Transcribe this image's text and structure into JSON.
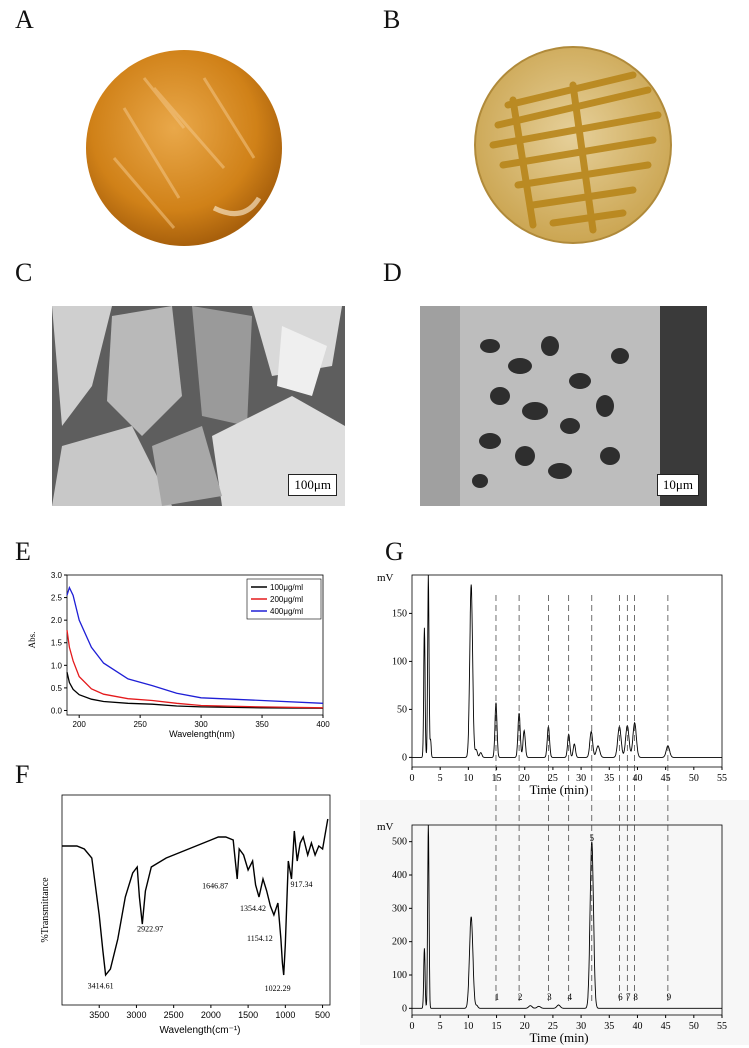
{
  "panels": {
    "a": "A",
    "b": "B",
    "c": "C",
    "d": "D",
    "e": "E",
    "f": "F",
    "g": "G"
  },
  "scalebars": {
    "c": "100μm",
    "d": "10μm"
  },
  "colors": {
    "agar_orange": "#d98a1e",
    "agar_yellow": "#d8b55a",
    "sem_gray": "#7a7a7a"
  },
  "chart_data": [
    {
      "id": "E",
      "type": "line",
      "xlabel": "Wavelength(nm)",
      "ylabel": "Abs.",
      "xlim": [
        190,
        400
      ],
      "ylim": [
        -0.1,
        3.0
      ],
      "xticks": [
        200,
        250,
        300,
        350,
        400
      ],
      "yticks": [
        0.0,
        0.5,
        1.0,
        1.5,
        2.0,
        2.5,
        3.0
      ],
      "legend_position": "top-right",
      "series": [
        {
          "name": "100μg/ml",
          "color": "#000000",
          "x": [
            190,
            192,
            195,
            200,
            210,
            220,
            240,
            260,
            280,
            300,
            350,
            400
          ],
          "y": [
            0.85,
            0.62,
            0.47,
            0.35,
            0.25,
            0.2,
            0.16,
            0.14,
            0.1,
            0.08,
            0.06,
            0.05
          ]
        },
        {
          "name": "200μg/ml",
          "color": "#e41a1c",
          "x": [
            190,
            192,
            195,
            200,
            210,
            220,
            240,
            260,
            280,
            300,
            350,
            400
          ],
          "y": [
            1.78,
            1.4,
            1.1,
            0.75,
            0.48,
            0.36,
            0.26,
            0.22,
            0.16,
            0.11,
            0.08,
            0.06
          ]
        },
        {
          "name": "400μg/ml",
          "color": "#1f1fd6",
          "x": [
            190,
            192,
            195,
            200,
            210,
            220,
            240,
            260,
            280,
            300,
            350,
            400
          ],
          "y": [
            2.55,
            2.72,
            2.55,
            2.0,
            1.4,
            1.05,
            0.7,
            0.55,
            0.38,
            0.28,
            0.22,
            0.16
          ]
        }
      ]
    },
    {
      "id": "F",
      "type": "line",
      "xlabel": "Wavelength(cm⁻¹)",
      "ylabel": "%Transmittance",
      "xlim": [
        4000,
        400
      ],
      "xticks": [
        3500,
        3000,
        2500,
        2000,
        1500,
        1000,
        500
      ],
      "series": [
        {
          "x": [
            4000,
            3800,
            3700,
            3600,
            3500,
            3450,
            3414,
            3350,
            3250,
            3150,
            3050,
            2990,
            2960,
            2922,
            2880,
            2800,
            2600,
            2400,
            2200,
            2000,
            1900,
            1800,
            1700,
            1680,
            1646,
            1620,
            1560,
            1500,
            1440,
            1400,
            1354,
            1300,
            1250,
            1200,
            1154,
            1100,
            1060,
            1040,
            1022,
            1000,
            960,
            917,
            880,
            840,
            800,
            760,
            700,
            650,
            600,
            550,
            500,
            430
          ],
          "y": [
            83,
            83,
            82,
            79,
            60,
            48,
            40,
            42,
            52,
            66,
            74,
            76,
            66,
            57,
            68,
            76,
            79,
            81,
            83,
            85,
            86,
            86,
            85,
            80,
            72,
            82,
            80,
            75,
            78,
            70,
            66,
            72,
            68,
            63,
            60,
            64,
            52,
            44,
            40,
            50,
            78,
            72,
            88,
            78,
            84,
            86,
            80,
            84,
            80,
            83,
            82,
            92
          ]
        }
      ],
      "annotations": [
        {
          "x": 3414.61,
          "label": "3414.61"
        },
        {
          "x": 2922.97,
          "label": "2922.97"
        },
        {
          "x": 1646.87,
          "label": "1646.87"
        },
        {
          "x": 1354.42,
          "label": "1354.42"
        },
        {
          "x": 1154.12,
          "label": "1154.12"
        },
        {
          "x": 1022.29,
          "label": "1022.29"
        },
        {
          "x": 917.34,
          "label": "917.34"
        }
      ]
    },
    {
      "id": "G-top",
      "type": "line",
      "xlabel": "Time (min)",
      "ylabel": "mV",
      "xlim": [
        0,
        55
      ],
      "ylim": [
        -10,
        190
      ],
      "xticks": [
        0,
        5,
        10,
        15,
        20,
        25,
        30,
        35,
        40,
        45,
        50,
        55
      ],
      "yticks": [
        0,
        50,
        100,
        150
      ],
      "peaks": [
        {
          "t": 2.2,
          "h": 135,
          "w": 0.12
        },
        {
          "t": 2.9,
          "h": 190,
          "w": 0.12
        },
        {
          "t": 3.3,
          "h": 18,
          "w": 0.1
        },
        {
          "t": 10.5,
          "h": 180,
          "w": 0.25
        },
        {
          "t": 11.4,
          "h": 8,
          "w": 0.2
        },
        {
          "t": 12.2,
          "h": 5,
          "w": 0.2
        },
        {
          "t": 14.9,
          "h": 57,
          "w": 0.18
        },
        {
          "t": 19.0,
          "h": 46,
          "w": 0.2
        },
        {
          "t": 19.9,
          "h": 28,
          "w": 0.2
        },
        {
          "t": 24.2,
          "h": 32,
          "w": 0.2
        },
        {
          "t": 27.8,
          "h": 24,
          "w": 0.2
        },
        {
          "t": 28.8,
          "h": 14,
          "w": 0.2
        },
        {
          "t": 31.8,
          "h": 27,
          "w": 0.25
        },
        {
          "t": 33.0,
          "h": 12,
          "w": 0.3
        },
        {
          "t": 36.8,
          "h": 32,
          "w": 0.3
        },
        {
          "t": 38.2,
          "h": 33,
          "w": 0.3
        },
        {
          "t": 39.5,
          "h": 36,
          "w": 0.3
        },
        {
          "t": 45.4,
          "h": 12,
          "w": 0.3
        }
      ]
    },
    {
      "id": "G-bottom",
      "type": "line",
      "xlabel": "Time (min)",
      "ylabel": "mV",
      "xlim": [
        0,
        55
      ],
      "ylim": [
        -20,
        550
      ],
      "xticks": [
        0,
        5,
        10,
        15,
        20,
        25,
        30,
        35,
        40,
        45,
        50,
        55
      ],
      "yticks": [
        0,
        100,
        200,
        300,
        400,
        500
      ],
      "peaks": [
        {
          "t": 2.2,
          "h": 180,
          "w": 0.12
        },
        {
          "t": 2.9,
          "h": 560,
          "w": 0.12
        },
        {
          "t": 10.5,
          "h": 275,
          "w": 0.3
        },
        {
          "t": 11.5,
          "h": 8,
          "w": 0.2
        },
        {
          "t": 21.0,
          "h": 8,
          "w": 0.3
        },
        {
          "t": 22.5,
          "h": 6,
          "w": 0.3
        },
        {
          "t": 26.0,
          "h": 10,
          "w": 0.3
        },
        {
          "t": 31.9,
          "h": 500,
          "w": 0.3
        }
      ],
      "peak_labels": [
        {
          "t": 14.9,
          "label": "1"
        },
        {
          "t": 19.0,
          "label": "2"
        },
        {
          "t": 24.2,
          "label": "3"
        },
        {
          "t": 27.8,
          "label": "4"
        },
        {
          "t": 31.9,
          "label": "5"
        },
        {
          "t": 36.8,
          "label": "6"
        },
        {
          "t": 38.2,
          "label": "7"
        },
        {
          "t": 39.5,
          "label": "8"
        },
        {
          "t": 45.4,
          "label": "9"
        }
      ],
      "dashed_links": [
        14.9,
        19.0,
        24.2,
        27.8,
        31.9,
        36.8,
        38.2,
        39.5,
        45.4
      ]
    }
  ]
}
